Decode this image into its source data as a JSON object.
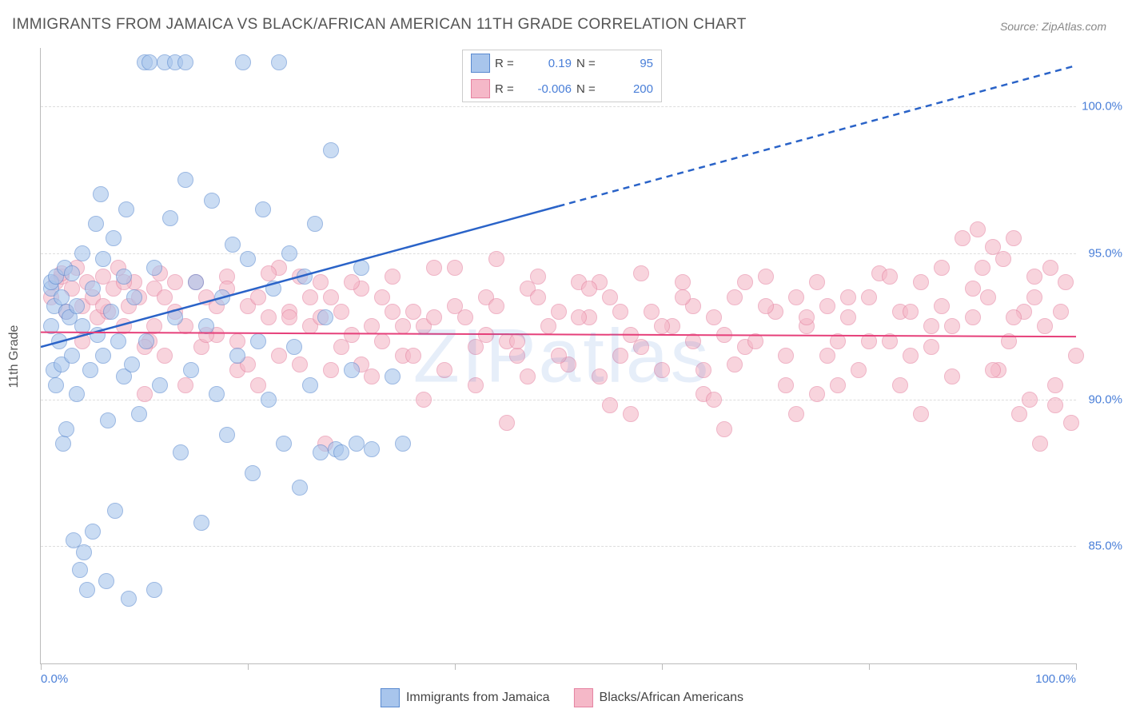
{
  "title": "IMMIGRANTS FROM JAMAICA VS BLACK/AFRICAN AMERICAN 11TH GRADE CORRELATION CHART",
  "source": "Source: ZipAtlas.com",
  "ylabel": "11th Grade",
  "watermark": "ZIPatlas",
  "chart": {
    "type": "scatter",
    "background_color": "#ffffff",
    "grid_color": "#dddddd",
    "axis_color": "#bbbbbb",
    "text_color": "#555555",
    "value_color": "#4a7fd8",
    "xlim": [
      0,
      100
    ],
    "ylim": [
      81,
      102
    ],
    "x_ticks": [
      0,
      20,
      40,
      60,
      80,
      100
    ],
    "x_tick_labels": [
      "0.0%",
      "",
      "",
      "",
      "",
      "100.0%"
    ],
    "y_grid": [
      85,
      90,
      95,
      100
    ],
    "y_grid_labels": [
      "85.0%",
      "90.0%",
      "95.0%",
      "100.0%"
    ],
    "marker_radius": 9,
    "marker_opacity": 0.6,
    "series": [
      {
        "name": "Immigrants from Jamaica",
        "fill": "#a8c5ec",
        "stroke": "#5a8ad0",
        "r": 0.19,
        "n": 95,
        "trend": {
          "color": "#2a63c8",
          "width": 2.5,
          "x1": 0,
          "y1": 91.8,
          "x_solid_end": 50,
          "y_solid_end": 96.6,
          "x2": 100,
          "y2": 101.4
        },
        "points": [
          [
            1,
            92.5
          ],
          [
            1,
            93.8
          ],
          [
            1,
            94.0
          ],
          [
            1.2,
            91.0
          ],
          [
            1.3,
            93.2
          ],
          [
            1.5,
            90.5
          ],
          [
            1.5,
            94.2
          ],
          [
            1.8,
            92.0
          ],
          [
            2,
            93.5
          ],
          [
            2,
            91.2
          ],
          [
            2.2,
            88.5
          ],
          [
            2.3,
            94.5
          ],
          [
            2.5,
            93.0
          ],
          [
            2.5,
            89.0
          ],
          [
            2.8,
            92.8
          ],
          [
            3,
            91.5
          ],
          [
            3,
            94.3
          ],
          [
            3.2,
            85.2
          ],
          [
            3.5,
            93.2
          ],
          [
            3.5,
            90.2
          ],
          [
            3.8,
            84.2
          ],
          [
            4,
            92.5
          ],
          [
            4,
            95.0
          ],
          [
            4.2,
            84.8
          ],
          [
            4.5,
            83.5
          ],
          [
            4.8,
            91.0
          ],
          [
            5,
            93.8
          ],
          [
            5,
            85.5
          ],
          [
            5.3,
            96.0
          ],
          [
            5.5,
            92.2
          ],
          [
            5.8,
            97.0
          ],
          [
            6,
            91.5
          ],
          [
            6,
            94.8
          ],
          [
            6.3,
            83.8
          ],
          [
            6.5,
            89.3
          ],
          [
            6.8,
            93.0
          ],
          [
            7,
            95.5
          ],
          [
            7.2,
            86.2
          ],
          [
            7.5,
            92.0
          ],
          [
            8,
            94.2
          ],
          [
            8,
            90.8
          ],
          [
            8.3,
            96.5
          ],
          [
            8.5,
            83.2
          ],
          [
            8.8,
            91.2
          ],
          [
            9,
            93.5
          ],
          [
            9.5,
            89.5
          ],
          [
            10,
            101.5
          ],
          [
            10.2,
            92.0
          ],
          [
            10.5,
            101.5
          ],
          [
            11,
            94.5
          ],
          [
            11,
            83.5
          ],
          [
            11.5,
            90.5
          ],
          [
            12,
            101.5
          ],
          [
            12.5,
            96.2
          ],
          [
            13,
            92.8
          ],
          [
            13,
            101.5
          ],
          [
            13.5,
            88.2
          ],
          [
            14,
            97.5
          ],
          [
            14,
            101.5
          ],
          [
            14.5,
            91.0
          ],
          [
            15,
            94.0
          ],
          [
            15.5,
            85.8
          ],
          [
            16,
            92.5
          ],
          [
            16.5,
            96.8
          ],
          [
            17,
            90.2
          ],
          [
            17.5,
            93.5
          ],
          [
            18,
            88.8
          ],
          [
            18.5,
            95.3
          ],
          [
            19,
            91.5
          ],
          [
            19.5,
            101.5
          ],
          [
            20,
            94.8
          ],
          [
            20.5,
            87.5
          ],
          [
            21,
            92.0
          ],
          [
            21.5,
            96.5
          ],
          [
            22,
            90.0
          ],
          [
            22.5,
            93.8
          ],
          [
            23,
            101.5
          ],
          [
            23.5,
            88.5
          ],
          [
            24,
            95.0
          ],
          [
            24.5,
            91.8
          ],
          [
            25,
            87.0
          ],
          [
            25.5,
            94.2
          ],
          [
            26,
            90.5
          ],
          [
            26.5,
            96.0
          ],
          [
            27,
            88.2
          ],
          [
            27.5,
            92.8
          ],
          [
            28,
            98.5
          ],
          [
            28.5,
            88.3
          ],
          [
            29,
            88.2
          ],
          [
            30,
            91.0
          ],
          [
            30.5,
            88.5
          ],
          [
            31,
            94.5
          ],
          [
            32,
            88.3
          ],
          [
            34,
            90.8
          ],
          [
            35,
            88.5
          ]
        ]
      },
      {
        "name": "Blacks/African Americans",
        "fill": "#f5b8c8",
        "stroke": "#e583a1",
        "r": -0.006,
        "n": 200,
        "trend": {
          "color": "#e6407a",
          "width": 2,
          "x1": 0,
          "y1": 92.3,
          "x2": 100,
          "y2": 92.15
        },
        "points": [
          [
            1,
            93.5
          ],
          [
            1.5,
            94.0
          ],
          [
            2,
            94.2
          ],
          [
            2.5,
            93.0
          ],
          [
            3,
            93.8
          ],
          [
            3.5,
            94.5
          ],
          [
            4,
            93.2
          ],
          [
            4.5,
            94.0
          ],
          [
            5,
            93.5
          ],
          [
            5.5,
            92.8
          ],
          [
            6,
            94.2
          ],
          [
            6.5,
            93.0
          ],
          [
            7,
            93.8
          ],
          [
            7.5,
            94.5
          ],
          [
            8,
            92.5
          ],
          [
            8.5,
            93.2
          ],
          [
            9,
            94.0
          ],
          [
            9.5,
            93.5
          ],
          [
            10,
            90.2
          ],
          [
            10.5,
            92.0
          ],
          [
            11,
            93.8
          ],
          [
            11.5,
            94.3
          ],
          [
            12,
            91.5
          ],
          [
            13,
            93.0
          ],
          [
            14,
            92.5
          ],
          [
            15,
            94.0
          ],
          [
            15.5,
            91.8
          ],
          [
            16,
            93.5
          ],
          [
            17,
            92.2
          ],
          [
            18,
            94.2
          ],
          [
            19,
            91.0
          ],
          [
            20,
            93.2
          ],
          [
            21,
            90.5
          ],
          [
            22,
            92.8
          ],
          [
            23,
            94.5
          ],
          [
            24,
            93.0
          ],
          [
            25,
            91.2
          ],
          [
            26,
            92.5
          ],
          [
            27,
            94.0
          ],
          [
            27.5,
            88.5
          ],
          [
            28,
            93.5
          ],
          [
            29,
            91.8
          ],
          [
            30,
            92.2
          ],
          [
            31,
            93.8
          ],
          [
            32,
            90.8
          ],
          [
            33,
            92.0
          ],
          [
            34,
            94.2
          ],
          [
            35,
            91.5
          ],
          [
            36,
            93.0
          ],
          [
            37,
            92.5
          ],
          [
            38,
            94.5
          ],
          [
            39,
            91.0
          ],
          [
            40,
            93.2
          ],
          [
            41,
            92.8
          ],
          [
            42,
            90.5
          ],
          [
            43,
            93.5
          ],
          [
            44,
            94.8
          ],
          [
            45,
            92.0
          ],
          [
            46,
            91.5
          ],
          [
            47,
            93.8
          ],
          [
            48,
            94.2
          ],
          [
            49,
            92.5
          ],
          [
            50,
            93.0
          ],
          [
            51,
            91.2
          ],
          [
            52,
            94.0
          ],
          [
            53,
            92.8
          ],
          [
            54,
            90.8
          ],
          [
            55,
            93.5
          ],
          [
            56,
            91.5
          ],
          [
            57,
            92.2
          ],
          [
            58,
            94.3
          ],
          [
            59,
            93.0
          ],
          [
            60,
            91.0
          ],
          [
            61,
            92.5
          ],
          [
            62,
            94.0
          ],
          [
            63,
            93.2
          ],
          [
            64,
            90.2
          ],
          [
            65,
            92.8
          ],
          [
            66,
            89.0
          ],
          [
            67,
            93.5
          ],
          [
            68,
            91.8
          ],
          [
            69,
            92.0
          ],
          [
            70,
            94.2
          ],
          [
            71,
            93.0
          ],
          [
            72,
            91.5
          ],
          [
            73,
            89.5
          ],
          [
            74,
            92.5
          ],
          [
            75,
            94.0
          ],
          [
            76,
            93.2
          ],
          [
            77,
            90.5
          ],
          [
            78,
            92.8
          ],
          [
            79,
            91.0
          ],
          [
            80,
            93.5
          ],
          [
            81,
            94.3
          ],
          [
            82,
            92.0
          ],
          [
            83,
            93.0
          ],
          [
            84,
            91.5
          ],
          [
            85,
            94.0
          ],
          [
            86,
            92.5
          ],
          [
            87,
            93.2
          ],
          [
            88,
            90.8
          ],
          [
            89,
            95.5
          ],
          [
            90,
            92.8
          ],
          [
            90.5,
            95.8
          ],
          [
            91,
            94.5
          ],
          [
            91.5,
            93.5
          ],
          [
            92,
            95.2
          ],
          [
            92.5,
            91.0
          ],
          [
            93,
            94.8
          ],
          [
            93.5,
            92.0
          ],
          [
            94,
            95.5
          ],
          [
            94.5,
            89.5
          ],
          [
            95,
            93.0
          ],
          [
            95.5,
            90.0
          ],
          [
            96,
            94.2
          ],
          [
            96.5,
            88.5
          ],
          [
            97,
            92.5
          ],
          [
            97.5,
            94.5
          ],
          [
            98,
            89.8
          ],
          [
            98.5,
            93.0
          ],
          [
            99,
            94.0
          ],
          [
            99.5,
            89.2
          ],
          [
            100,
            91.5
          ],
          [
            2,
            94.3
          ],
          [
            4,
            92.0
          ],
          [
            6,
            93.2
          ],
          [
            8,
            94.0
          ],
          [
            10,
            91.8
          ],
          [
            12,
            93.5
          ],
          [
            14,
            90.5
          ],
          [
            16,
            92.2
          ],
          [
            18,
            93.8
          ],
          [
            20,
            91.2
          ],
          [
            22,
            94.3
          ],
          [
            24,
            92.8
          ],
          [
            26,
            93.5
          ],
          [
            28,
            91.0
          ],
          [
            30,
            94.0
          ],
          [
            32,
            92.5
          ],
          [
            34,
            93.0
          ],
          [
            36,
            91.5
          ],
          [
            38,
            92.8
          ],
          [
            40,
            94.5
          ],
          [
            42,
            91.8
          ],
          [
            44,
            93.2
          ],
          [
            46,
            92.0
          ],
          [
            48,
            93.5
          ],
          [
            50,
            91.5
          ],
          [
            52,
            92.8
          ],
          [
            54,
            94.0
          ],
          [
            56,
            93.0
          ],
          [
            58,
            91.8
          ],
          [
            60,
            92.5
          ],
          [
            62,
            93.5
          ],
          [
            64,
            91.0
          ],
          [
            66,
            92.2
          ],
          [
            68,
            94.0
          ],
          [
            70,
            93.2
          ],
          [
            72,
            90.5
          ],
          [
            74,
            92.8
          ],
          [
            76,
            91.5
          ],
          [
            78,
            93.5
          ],
          [
            80,
            92.0
          ],
          [
            82,
            94.2
          ],
          [
            84,
            93.0
          ],
          [
            86,
            91.8
          ],
          [
            88,
            92.5
          ],
          [
            90,
            93.8
          ],
          [
            92,
            91.0
          ],
          [
            94,
            92.8
          ],
          [
            96,
            93.5
          ],
          [
            98,
            90.5
          ],
          [
            45,
            89.2
          ],
          [
            55,
            89.8
          ],
          [
            65,
            90.0
          ],
          [
            75,
            90.2
          ],
          [
            85,
            89.5
          ],
          [
            33,
            93.5
          ],
          [
            37,
            90.0
          ],
          [
            43,
            92.2
          ],
          [
            47,
            90.8
          ],
          [
            53,
            93.8
          ],
          [
            57,
            89.5
          ],
          [
            63,
            92.0
          ],
          [
            67,
            91.2
          ],
          [
            73,
            93.5
          ],
          [
            77,
            92.0
          ],
          [
            83,
            90.5
          ],
          [
            87,
            94.5
          ],
          [
            11,
            92.5
          ],
          [
            13,
            94.0
          ],
          [
            17,
            93.2
          ],
          [
            19,
            92.0
          ],
          [
            21,
            93.5
          ],
          [
            23,
            91.5
          ],
          [
            25,
            94.2
          ],
          [
            27,
            92.8
          ],
          [
            29,
            93.0
          ],
          [
            31,
            91.2
          ],
          [
            35,
            92.5
          ]
        ]
      }
    ]
  },
  "legend_top": {
    "r_label": "R =",
    "n_label": "N ="
  },
  "bottom_legend": {
    "items": [
      "Immigrants from Jamaica",
      "Blacks/African Americans"
    ]
  }
}
